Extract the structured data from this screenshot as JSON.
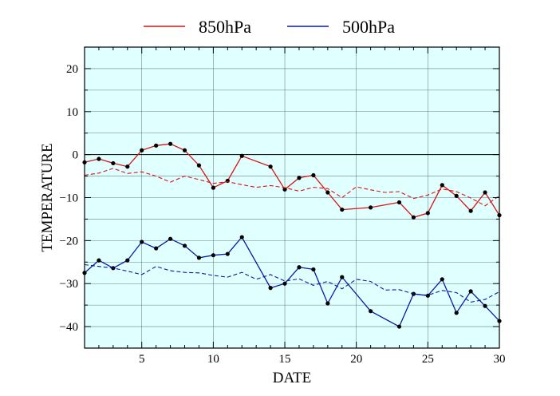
{
  "chart_data": {
    "type": "line",
    "xlabel": "DATE",
    "ylabel": "TEMPERATURE",
    "xlim": [
      1,
      30
    ],
    "ylim": [
      -45,
      25
    ],
    "xticks": [
      5,
      10,
      15,
      20,
      25,
      30
    ],
    "yticks": [
      -40,
      -30,
      -20,
      -10,
      0,
      10,
      20
    ],
    "xtick_labels": [
      "5",
      "10",
      "15",
      "20",
      "25",
      "30"
    ],
    "ytick_labels": [
      "−40",
      "−30",
      "−20",
      "−10",
      "0",
      "10",
      "20"
    ],
    "minor_x_step": 1,
    "minor_y_step": 5,
    "grid": true,
    "zero_line": true,
    "background_color": "#e0ffff",
    "legend": {
      "placement": "top-center",
      "entries": [
        {
          "label": "850hPa",
          "color": "#dd1111"
        },
        {
          "label": "500hPa",
          "color": "#0a1aa8"
        }
      ]
    },
    "series": [
      {
        "name": "850hPa",
        "color": "#dd1111",
        "style": "solid",
        "markers": true,
        "points": [
          [
            1,
            -1.8
          ],
          [
            2,
            -1
          ],
          [
            3,
            -2
          ],
          [
            4,
            -2.8
          ],
          [
            5,
            1
          ],
          [
            6,
            2.1
          ],
          [
            7,
            2.5
          ],
          [
            8,
            1
          ],
          [
            9,
            -2.5
          ],
          [
            10,
            -7.7
          ],
          [
            11,
            -6.1
          ],
          [
            12,
            -0.3
          ],
          [
            14,
            -2.8
          ],
          [
            15,
            -8.1
          ],
          [
            16,
            -5.4
          ],
          [
            17,
            -4.8
          ],
          [
            18,
            -8.8
          ],
          [
            19,
            -12.8
          ],
          [
            21,
            -12.3
          ],
          [
            23,
            -11.1
          ],
          [
            24,
            -14.6
          ],
          [
            25,
            -13.6
          ],
          [
            26,
            -7.1
          ],
          [
            27,
            -9.6
          ],
          [
            28,
            -13.1
          ],
          [
            29,
            -8.8
          ],
          [
            30,
            -14.1
          ]
        ]
      },
      {
        "name": "",
        "color": "#dd1111",
        "style": "dashed",
        "markers": false,
        "points": [
          [
            1,
            -4.8
          ],
          [
            2,
            -4.3
          ],
          [
            3,
            -3.2
          ],
          [
            4,
            -4.4
          ],
          [
            5,
            -4
          ],
          [
            6,
            -5
          ],
          [
            7,
            -6.4
          ],
          [
            8,
            -5
          ],
          [
            9,
            -5.8
          ],
          [
            10,
            -6.7
          ],
          [
            11,
            -6.3
          ],
          [
            12,
            -7
          ],
          [
            13,
            -7.6
          ],
          [
            14,
            -7.2
          ],
          [
            15,
            -7.7
          ],
          [
            16,
            -8.5
          ],
          [
            17,
            -7.6
          ],
          [
            18,
            -7.9
          ],
          [
            19,
            -10
          ],
          [
            20,
            -7.5
          ],
          [
            21,
            -8.2
          ],
          [
            22,
            -8.8
          ],
          [
            23,
            -8.6
          ],
          [
            24,
            -10.2
          ],
          [
            25,
            -9.4
          ],
          [
            26,
            -8
          ],
          [
            27,
            -8.6
          ],
          [
            28,
            -10.1
          ],
          [
            29,
            -11.9
          ],
          [
            30,
            -9.6
          ]
        ]
      },
      {
        "name": "500hPa",
        "color": "#0a1aa8",
        "style": "solid",
        "markers": true,
        "points": [
          [
            1,
            -27.5
          ],
          [
            2,
            -24.6
          ],
          [
            3,
            -26.4
          ],
          [
            4,
            -24.6
          ],
          [
            5,
            -20.3
          ],
          [
            6,
            -21.8
          ],
          [
            7,
            -19.6
          ],
          [
            8,
            -21.2
          ],
          [
            9,
            -24
          ],
          [
            10,
            -23.4
          ],
          [
            11,
            -23.1
          ],
          [
            12,
            -19.2
          ],
          [
            14,
            -31
          ],
          [
            15,
            -30
          ],
          [
            16,
            -26.2
          ],
          [
            17,
            -26.7
          ],
          [
            18,
            -34.6
          ],
          [
            19,
            -28.5
          ],
          [
            21,
            -36.4
          ],
          [
            23,
            -40
          ],
          [
            24,
            -32.4
          ],
          [
            25,
            -32.8
          ],
          [
            26,
            -29
          ],
          [
            27,
            -36.8
          ],
          [
            28,
            -31.8
          ],
          [
            29,
            -35.2
          ],
          [
            30,
            -38.7
          ]
        ]
      },
      {
        "name": "",
        "color": "#0a1aa8",
        "style": "dashed",
        "markers": false,
        "points": [
          [
            1,
            -25.6
          ],
          [
            2,
            -26
          ],
          [
            3,
            -26.4
          ],
          [
            4,
            -27.1
          ],
          [
            5,
            -27.9
          ],
          [
            6,
            -26
          ],
          [
            7,
            -27
          ],
          [
            8,
            -27.4
          ],
          [
            9,
            -27.5
          ],
          [
            10,
            -28.1
          ],
          [
            11,
            -28.5
          ],
          [
            12,
            -27.4
          ],
          [
            13,
            -29
          ],
          [
            14,
            -27.9
          ],
          [
            15,
            -29.4
          ],
          [
            16,
            -28.9
          ],
          [
            17,
            -30.4
          ],
          [
            18,
            -29.5
          ],
          [
            19,
            -31.2
          ],
          [
            20,
            -29
          ],
          [
            21,
            -29.5
          ],
          [
            22,
            -31.5
          ],
          [
            23,
            -31.4
          ],
          [
            24,
            -32.4
          ],
          [
            25,
            -32.7
          ],
          [
            26,
            -31.6
          ],
          [
            27,
            -32.1
          ],
          [
            28,
            -34.3
          ],
          [
            29,
            -33.7
          ],
          [
            30,
            -31.9
          ]
        ]
      }
    ]
  }
}
